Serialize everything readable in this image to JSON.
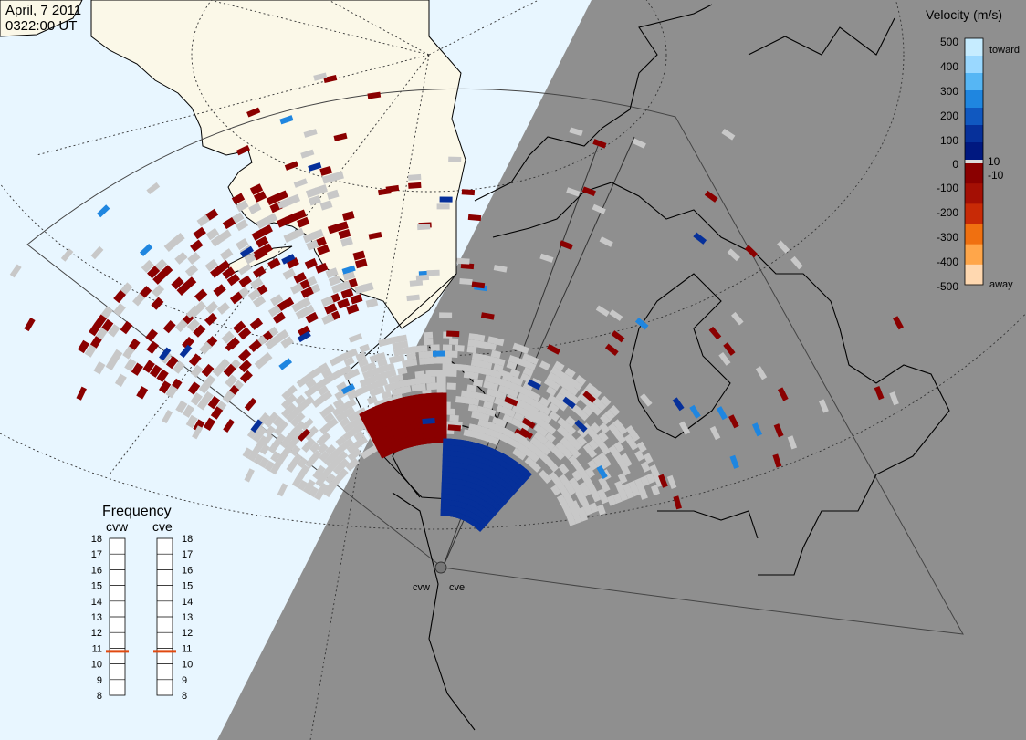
{
  "header": {
    "date": "April, 7 2011",
    "time": "0322:00 UT"
  },
  "colors": {
    "day_side": "#e8f6ff",
    "night_side": "#8f8f8f",
    "land_day": "#fbf8e8",
    "ground_scatter": "#c8c8c8",
    "coast": "#000000"
  },
  "velocity_scale": {
    "title": "Velocity (m/s)",
    "tick_labels": [
      "500",
      "400",
      "300",
      "200",
      "100",
      "10",
      "0",
      "-10",
      "-100",
      "-200",
      "-300",
      "-400",
      "-500"
    ],
    "toward_label": "toward",
    "away_label": "away",
    "colors": [
      "#c6ecff",
      "#9ad8ff",
      "#56b6f4",
      "#1f86e0",
      "#1058c0",
      "#06309a",
      "#001880",
      "#dcdcdc",
      "#8a0000",
      "#a40f04",
      "#c82a06",
      "#f07010",
      "#ffa64a",
      "#ffd8b0"
    ]
  },
  "frequency_panel": {
    "title": "Frequency",
    "radars": [
      {
        "name": "cvw",
        "value": 10.8
      },
      {
        "name": "cve",
        "value": 10.8
      }
    ],
    "ticks": [
      "18",
      "17",
      "16",
      "15",
      "14",
      "13",
      "12",
      "11",
      "10",
      "9",
      "8"
    ],
    "min": 8,
    "max": 18,
    "marker_color": "#e04a10"
  },
  "radar_sites": [
    {
      "name": "cvw"
    },
    {
      "name": "cve"
    }
  ]
}
